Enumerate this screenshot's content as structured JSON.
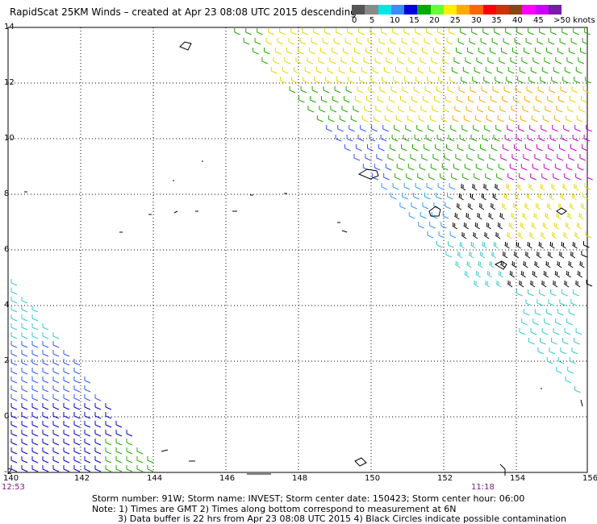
{
  "title": "RapidScat 25KM Winds – created at Apr 23 08:08 UTC 2015 descending",
  "colorbar": {
    "labels": [
      "0",
      "5",
      "10",
      "15",
      "20",
      "25",
      "30",
      "35",
      "40",
      "45",
      ">50 knots"
    ],
    "colors": [
      "#555555",
      "#8a8a8a",
      "#00e6e6",
      "#3a8cff",
      "#0000dd",
      "#00aa00",
      "#66ff33",
      "#ffee00",
      "#ffaa00",
      "#ff6600",
      "#ff0000",
      "#cc3300",
      "#8b4513",
      "#ff00ff",
      "#cc00ff",
      "#7a1aa8"
    ]
  },
  "axes": {
    "x_ticks": [
      "140",
      "142",
      "144",
      "146",
      "148",
      "150",
      "152",
      "154",
      "156"
    ],
    "y_ticks": [
      "14",
      "12",
      "10",
      "8",
      "6",
      "4",
      "2",
      "0",
      "-2"
    ]
  },
  "swath_times": {
    "left": "12:53",
    "right": "11:18"
  },
  "footer": {
    "line1": "Storm number: 91W;  Storm name: INVEST;  Storm center date: 150423;  Storm center hour: 06:00",
    "line2": "Note: 1) Times are GMT  2) Times along bottom correspond to measurement at 6N",
    "line3": "3) Data buffer is 22 hrs from Apr 23 08:08 UTC 2015  4) Black Circles indicate possible contamination"
  }
}
